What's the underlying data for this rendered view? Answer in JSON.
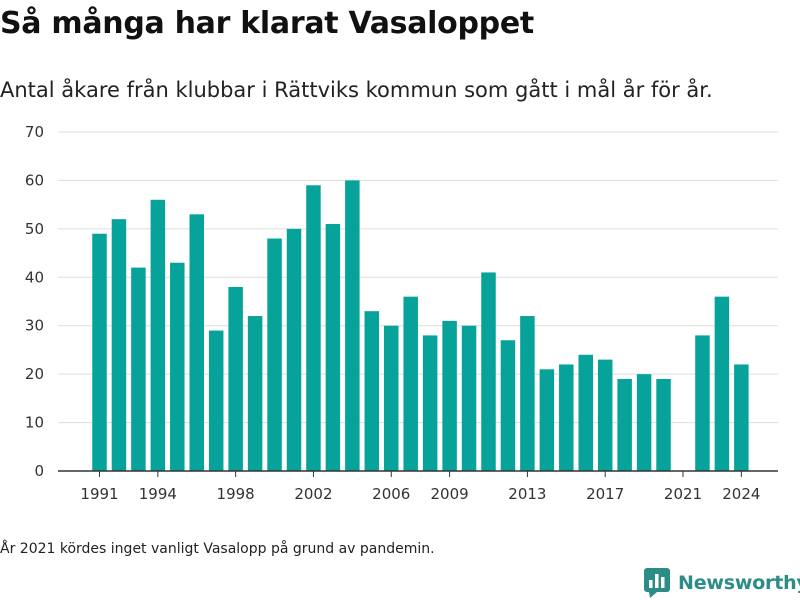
{
  "header": {
    "title": "Så många har klarat Vasaloppet",
    "subtitle": "Antal åkare från klubbar i Rättviks kommun som gått i mål år för år."
  },
  "footer": {
    "note": "År 2021 kördes inget vanligt Vasalopp på grund av pandemin.",
    "brand": "Newsworthy",
    "brand_color": "#2c8c86"
  },
  "chart_data": {
    "type": "bar",
    "bar_color": "#07a39a",
    "x": [
      1991,
      1992,
      1993,
      1994,
      1995,
      1996,
      1997,
      1998,
      1999,
      2000,
      2001,
      2002,
      2003,
      2004,
      2005,
      2006,
      2007,
      2008,
      2009,
      2010,
      2011,
      2012,
      2013,
      2014,
      2015,
      2016,
      2017,
      2018,
      2019,
      2020,
      2021,
      2022,
      2023,
      2024
    ],
    "values": [
      49,
      52,
      42,
      56,
      43,
      53,
      29,
      38,
      32,
      48,
      50,
      59,
      51,
      60,
      33,
      30,
      36,
      28,
      31,
      30,
      41,
      27,
      32,
      21,
      22,
      24,
      23,
      19,
      20,
      19,
      null,
      28,
      36,
      22
    ],
    "x_tick_labels": [
      "1991",
      "1994",
      "1998",
      "2002",
      "2006",
      "2009",
      "2013",
      "2017",
      "2021",
      "2024"
    ],
    "x_tick_years": [
      1991,
      1994,
      1998,
      2002,
      2006,
      2009,
      2013,
      2017,
      2021,
      2024
    ],
    "y_ticks": [
      0,
      10,
      20,
      30,
      40,
      50,
      60,
      70
    ],
    "ylim": [
      0,
      70
    ],
    "grid": true
  }
}
